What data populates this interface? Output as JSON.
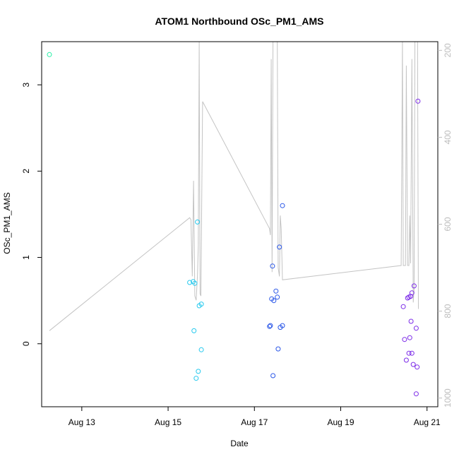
{
  "chart_data": {
    "type": "scatter",
    "title": "ATOM1 Northbound OSc_PM1_AMS",
    "xlabel": "Date",
    "ylabel": "OSc_PM1_AMS",
    "x_ticks": [
      "Aug 13",
      "Aug 15",
      "Aug 17",
      "Aug 19",
      "Aug 21"
    ],
    "y_ticks": [
      "0",
      "1",
      "2",
      "3"
    ],
    "y2_ticks": [
      "200",
      "400",
      "600",
      "800",
      "1000"
    ],
    "xlim_days": [
      12.07,
      21.25
    ],
    "ylim": [
      -0.73,
      3.5
    ],
    "y2lim": [
      1020,
      180
    ],
    "y2_reversed": true,
    "grid": false,
    "colors": {
      "line": "#c4c4c4",
      "axis": "#000000",
      "right_axis": "#bdbdbd",
      "point_aug12": "#24f0a5",
      "point_aug15": "#25c9ee",
      "point_aug17": "#2b57e8",
      "point_aug20": "#7c2be8"
    },
    "scatter_series": [
      {
        "color": "#24f0a5",
        "points": [
          [
            12.25,
            3.35
          ]
        ]
      },
      {
        "color": "#25c9ee",
        "points": [
          [
            15.5,
            0.71
          ],
          [
            15.58,
            0.72
          ],
          [
            15.6,
            0.15
          ],
          [
            15.62,
            0.7
          ],
          [
            15.65,
            -0.4
          ],
          [
            15.68,
            1.41
          ],
          [
            15.7,
            -0.32
          ],
          [
            15.72,
            0.44
          ],
          [
            15.77,
            -0.07
          ],
          [
            15.77,
            0.46
          ]
        ]
      },
      {
        "color": "#2b57e8",
        "points": [
          [
            17.35,
            0.2
          ],
          [
            17.37,
            0.21
          ],
          [
            17.4,
            0.52
          ],
          [
            17.42,
            0.9
          ],
          [
            17.43,
            -0.37
          ],
          [
            17.45,
            0.5
          ],
          [
            17.5,
            0.61
          ],
          [
            17.53,
            0.54
          ],
          [
            17.55,
            -0.06
          ],
          [
            17.58,
            1.12
          ],
          [
            17.6,
            0.19
          ],
          [
            17.65,
            0.21
          ],
          [
            17.65,
            1.6
          ]
        ]
      },
      {
        "color": "#7c2be8",
        "points": [
          [
            20.45,
            0.43
          ],
          [
            20.48,
            0.05
          ],
          [
            20.52,
            -0.19
          ],
          [
            20.55,
            0.53
          ],
          [
            20.58,
            0.54
          ],
          [
            20.58,
            -0.11
          ],
          [
            20.6,
            0.07
          ],
          [
            20.62,
            0.55
          ],
          [
            20.63,
            0.26
          ],
          [
            20.65,
            -0.11
          ],
          [
            20.65,
            0.59
          ],
          [
            20.68,
            -0.24
          ],
          [
            20.7,
            0.67
          ],
          [
            20.75,
            -0.58
          ],
          [
            20.75,
            0.18
          ],
          [
            20.77,
            -0.27
          ],
          [
            20.79,
            2.81
          ]
        ]
      }
    ],
    "line_series": {
      "axis": "right",
      "points": [
        [
          12.25,
          845
        ],
        [
          15.5,
          585
        ],
        [
          15.53,
          590
        ],
        [
          15.56,
          720
        ],
        [
          15.59,
          500
        ],
        [
          15.62,
          765
        ],
        [
          15.65,
          775
        ],
        [
          15.68,
          720
        ],
        [
          15.7,
          650
        ],
        [
          15.72,
          180
        ],
        [
          15.74,
          760
        ],
        [
          15.76,
          765
        ],
        [
          15.8,
          318
        ],
        [
          17.35,
          610
        ],
        [
          17.37,
          625
        ],
        [
          17.39,
          220
        ],
        [
          17.41,
          710
        ],
        [
          17.43,
          180
        ],
        [
          17.53,
          180
        ],
        [
          17.55,
          700
        ],
        [
          17.58,
          720
        ],
        [
          17.6,
          580
        ],
        [
          17.62,
          610
        ],
        [
          17.65,
          728
        ],
        [
          20.4,
          695
        ],
        [
          20.43,
          180
        ],
        [
          20.45,
          695
        ],
        [
          20.5,
          695
        ],
        [
          20.52,
          235
        ],
        [
          20.55,
          695
        ],
        [
          20.58,
          695
        ],
        [
          20.6,
          580
        ],
        [
          20.62,
          690
        ],
        [
          20.65,
          220
        ],
        [
          20.68,
          780
        ],
        [
          20.7,
          750
        ],
        [
          20.72,
          180
        ],
        [
          20.78,
          180
        ],
        [
          20.8,
          795
        ]
      ]
    }
  }
}
